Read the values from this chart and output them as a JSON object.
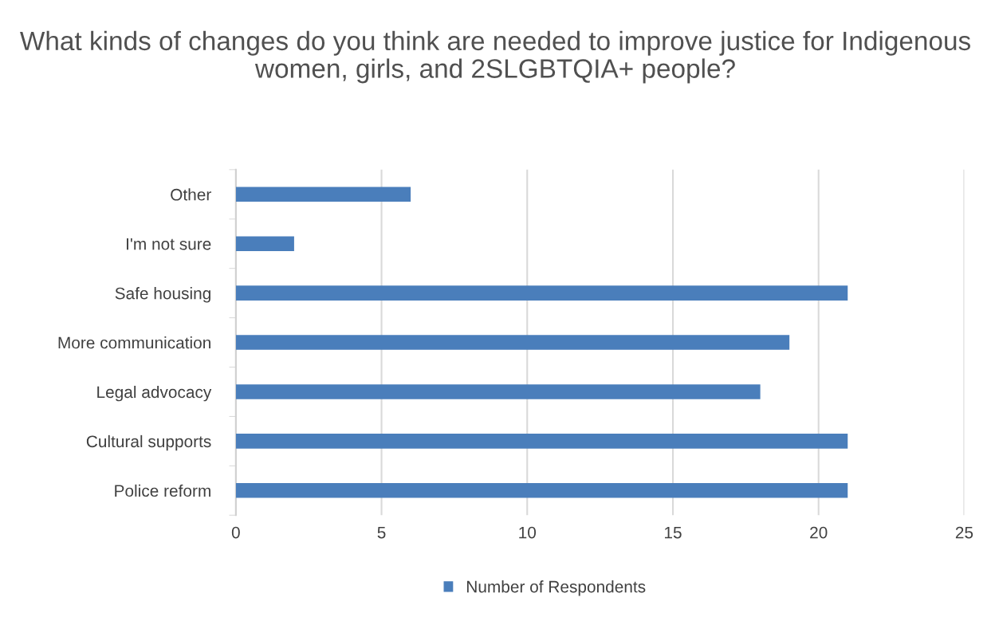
{
  "chart_data": {
    "type": "bar",
    "orientation": "horizontal",
    "title": "What kinds of changes do you think are needed to improve justice for Indigenous women, girls, and 2SLGBTQIA+ people?",
    "categories": [
      "Other",
      "I'm not sure",
      "Safe housing",
      "More communication",
      "Legal advocacy",
      "Cultural supports",
      "Police reform"
    ],
    "series": [
      {
        "name": "Number of Respondents",
        "color": "#4a7ebb",
        "values": [
          6,
          2,
          21,
          19,
          18,
          21,
          21
        ]
      }
    ],
    "xlim": [
      0,
      25
    ],
    "xticks": [
      0,
      5,
      10,
      15,
      20,
      25
    ],
    "grid": "x",
    "legend": "bottom"
  }
}
